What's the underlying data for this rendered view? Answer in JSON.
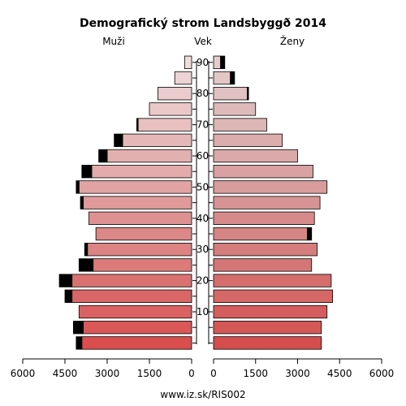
{
  "chart_data": {
    "type": "bar",
    "title": "Demografický strom Landsbyggð 2014",
    "left_label": "Muži",
    "center_label": "Vek",
    "right_label": "Ženy",
    "source": "www.iz.sk/RIS002",
    "age_groups": [
      "0-4",
      "5-9",
      "10-14",
      "15-19",
      "20-24",
      "25-29",
      "30-34",
      "35-39",
      "40-44",
      "45-49",
      "50-54",
      "55-59",
      "60-64",
      "65-69",
      "70-74",
      "75-79",
      "80-84",
      "85-89",
      "90+"
    ],
    "age_ticks": [
      10,
      20,
      30,
      40,
      50,
      60,
      70,
      80,
      90
    ],
    "x_ticks_left": [
      "6000",
      "4500",
      "3000",
      "1500",
      "0"
    ],
    "x_ticks_right": [
      "0",
      "1500",
      "3000",
      "4500",
      "6000"
    ],
    "xlim": [
      0,
      6000
    ],
    "male": [
      3900,
      3850,
      4000,
      4250,
      4250,
      3500,
      3700,
      3400,
      3650,
      3850,
      4000,
      3550,
      3000,
      2450,
      1900,
      1500,
      1200,
      600,
      250
    ],
    "male_surplus": [
      200,
      350,
      0,
      250,
      450,
      500,
      100,
      0,
      0,
      100,
      100,
      350,
      300,
      300,
      50,
      0,
      0,
      0,
      0
    ],
    "female": [
      3850,
      3850,
      4050,
      4250,
      4200,
      3500,
      3700,
      3350,
      3600,
      3800,
      4050,
      3550,
      3000,
      2450,
      1900,
      1500,
      1200,
      600,
      250
    ],
    "female_surplus": [
      0,
      0,
      0,
      0,
      0,
      0,
      0,
      150,
      0,
      0,
      0,
      0,
      0,
      0,
      0,
      0,
      50,
      150,
      150
    ]
  }
}
